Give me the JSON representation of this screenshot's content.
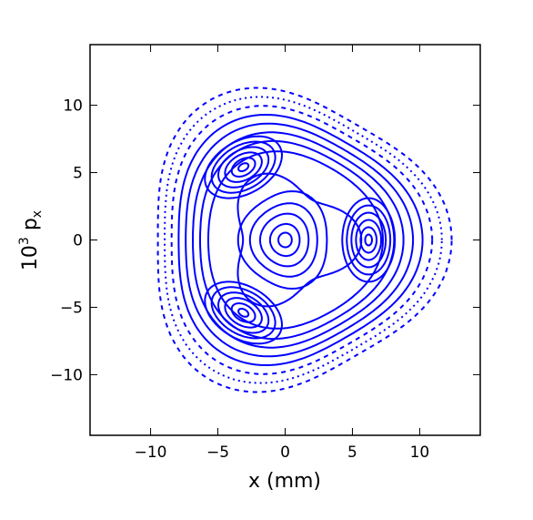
{
  "chart_data": {
    "type": "scatter",
    "title": "",
    "xlabel": "x (mm)",
    "ylabel": {
      "base": "10",
      "sup": "3",
      "main": " p",
      "sub": "x"
    },
    "xlim": [
      -14.5,
      14.5
    ],
    "ylim": [
      -14.5,
      14.5
    ],
    "xticks": [
      -10,
      -5,
      0,
      5,
      10
    ],
    "yticks": [
      -10,
      -5,
      0,
      5,
      10
    ],
    "xtick_labels": [
      "−10",
      "−5",
      "0",
      "5",
      "10"
    ],
    "ytick_labels": [
      "−10",
      "−5",
      "0",
      "5",
      "10"
    ],
    "grid": false,
    "legend": "none",
    "line_color": "#0000ff",
    "description_of_marks": "Poincare phase-space section: nested closed orbits around a central fixed point at (0,0), three resonance islands centered near (6.2, 0), (-3.1, 5.4), (-3.1, -5.4), enclosed by outer triangular-rounded tori; the outermost tori are drawn as dotted/dashed point sequences.",
    "series": [
      {
        "kind": "center",
        "cx": 0,
        "cy": 0,
        "radii": [
          0.5,
          1.1,
          1.8,
          2.5,
          3.3
        ]
      },
      {
        "kind": "island",
        "cx": 6.2,
        "cy": 0,
        "angle": 0,
        "radii": [
          0.3,
          0.7,
          1.1,
          1.5,
          1.9,
          2.3
        ]
      },
      {
        "kind": "island",
        "cx": -3.1,
        "cy": 5.4,
        "angle": 120,
        "radii": [
          0.3,
          0.7,
          1.1,
          1.5,
          1.9,
          2.3
        ]
      },
      {
        "kind": "island",
        "cx": -3.1,
        "cy": -5.4,
        "angle": 240,
        "radii": [
          0.3,
          0.7,
          1.1,
          1.5,
          1.9,
          2.3
        ]
      },
      {
        "kind": "outer",
        "r0": 6.3,
        "amp": 0.06,
        "style": "solid"
      },
      {
        "kind": "outer",
        "r0": 7.0,
        "amp": 0.07,
        "style": "solid"
      },
      {
        "kind": "outer",
        "r0": 7.6,
        "amp": 0.075,
        "style": "solid"
      },
      {
        "kind": "outer",
        "r0": 8.2,
        "amp": 0.08,
        "style": "solid"
      },
      {
        "kind": "outer",
        "r0": 8.8,
        "amp": 0.085,
        "style": "solid"
      },
      {
        "kind": "outer",
        "r0": 9.4,
        "amp": 0.09,
        "style": "dashed"
      },
      {
        "kind": "outer",
        "r0": 10.0,
        "amp": 0.095,
        "style": "dotted"
      },
      {
        "kind": "outer",
        "r0": 10.6,
        "amp": 0.1,
        "style": "dashed"
      }
    ]
  }
}
